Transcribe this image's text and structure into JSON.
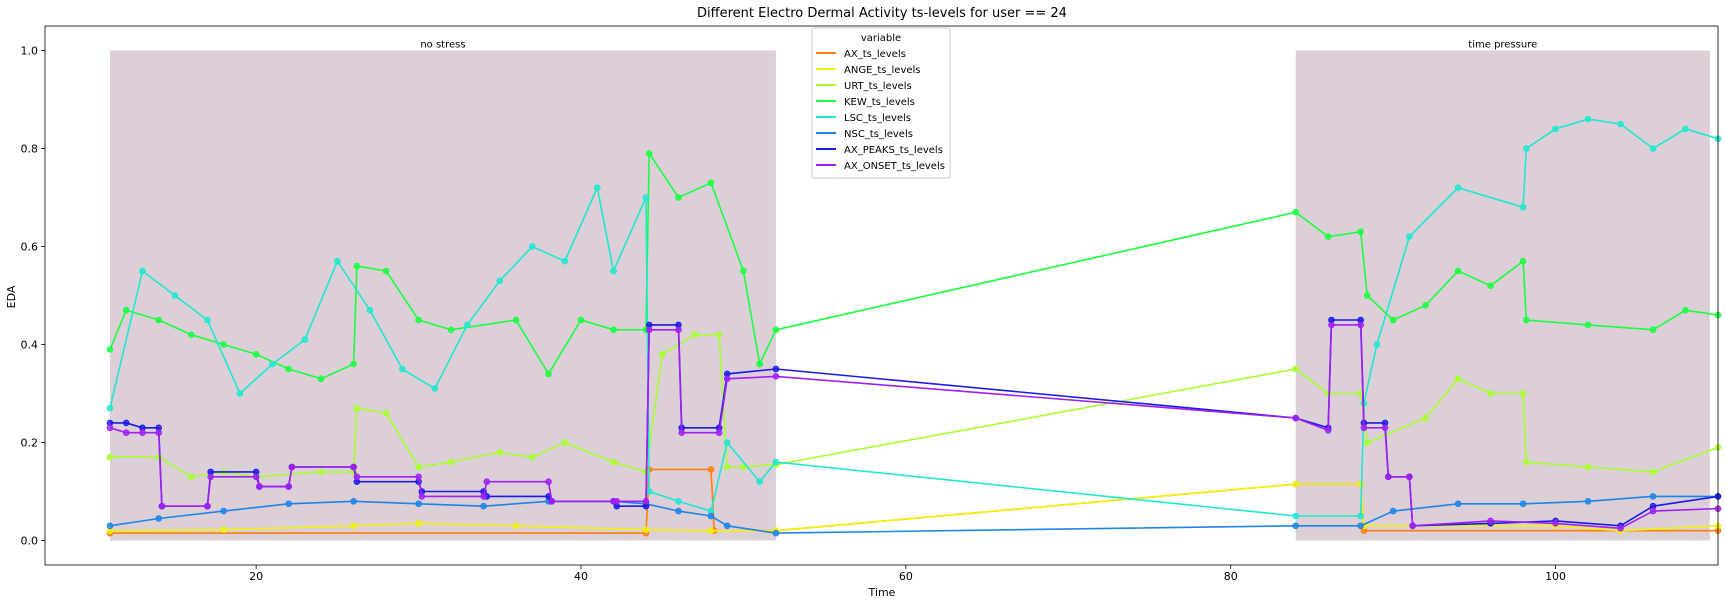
{
  "chart_data": {
    "type": "line",
    "title": "Different Electro Dermal Activity ts-levels for user == 24",
    "xlabel": "Time",
    "ylabel": "EDA",
    "xlim": [
      7,
      110
    ],
    "ylim": [
      -0.05,
      1.05
    ],
    "xticks": [
      20,
      40,
      60,
      80,
      100
    ],
    "yticks": [
      0.0,
      0.2,
      0.4,
      0.6,
      0.8,
      1.0
    ],
    "grid": false,
    "legend": {
      "title": "variable",
      "position": "top-center"
    },
    "regions": [
      {
        "label": "no stress",
        "x0": 11,
        "x1": 52,
        "y0": 0,
        "y1": 1.0,
        "color": "#dccfd8"
      },
      {
        "label": "time pressure",
        "x0": 84,
        "x1": 109.5,
        "y0": 0,
        "y1": 1.0,
        "color": "#dccfd8"
      }
    ],
    "series": [
      {
        "name": "AX_ts_levels",
        "color": "#ff7f0e",
        "points": [
          [
            11,
            0.015
          ],
          [
            44,
            0.015
          ],
          [
            44.2,
            0.145
          ],
          [
            48,
            0.145
          ],
          [
            48.2,
            0.02
          ],
          [
            52,
            0.02
          ],
          [
            84,
            0.115
          ],
          [
            88,
            0.115
          ],
          [
            88.2,
            0.02
          ],
          [
            110,
            0.02
          ]
        ]
      },
      {
        "name": "ANGE_ts_levels",
        "color": "#f2f20a",
        "points": [
          [
            11,
            0.02
          ],
          [
            18,
            0.022
          ],
          [
            26,
            0.03
          ],
          [
            30,
            0.035
          ],
          [
            36,
            0.03
          ],
          [
            44,
            0.022
          ],
          [
            48,
            0.02
          ],
          [
            52,
            0.02
          ],
          [
            84,
            0.115
          ],
          [
            88,
            0.115
          ],
          [
            88.2,
            0.03
          ],
          [
            100,
            0.03
          ],
          [
            104,
            0.02
          ],
          [
            110,
            0.03
          ]
        ]
      },
      {
        "name": "URT_ts_levels",
        "color": "#a6ff2e",
        "points": [
          [
            11,
            0.17
          ],
          [
            14,
            0.17
          ],
          [
            16,
            0.13
          ],
          [
            18,
            0.14
          ],
          [
            20,
            0.13
          ],
          [
            24,
            0.14
          ],
          [
            26,
            0.14
          ],
          [
            26.2,
            0.27
          ],
          [
            28,
            0.26
          ],
          [
            30,
            0.15
          ],
          [
            32,
            0.16
          ],
          [
            35,
            0.18
          ],
          [
            37,
            0.17
          ],
          [
            39,
            0.2
          ],
          [
            42,
            0.16
          ],
          [
            44,
            0.14
          ],
          [
            45,
            0.38
          ],
          [
            47,
            0.42
          ],
          [
            48.5,
            0.42
          ],
          [
            49,
            0.15
          ],
          [
            50,
            0.15
          ],
          [
            52,
            0.155
          ],
          [
            84,
            0.35
          ],
          [
            86,
            0.3
          ],
          [
            88,
            0.3
          ],
          [
            88.4,
            0.2
          ],
          [
            92,
            0.25
          ],
          [
            94,
            0.33
          ],
          [
            96,
            0.3
          ],
          [
            98,
            0.3
          ],
          [
            98.2,
            0.16
          ],
          [
            102,
            0.15
          ],
          [
            106,
            0.14
          ],
          [
            110,
            0.19
          ]
        ]
      },
      {
        "name": "KEW_ts_levels",
        "color": "#19ff3f",
        "points": [
          [
            11,
            0.39
          ],
          [
            12,
            0.47
          ],
          [
            14,
            0.45
          ],
          [
            16,
            0.42
          ],
          [
            18,
            0.4
          ],
          [
            20,
            0.38
          ],
          [
            22,
            0.35
          ],
          [
            24,
            0.33
          ],
          [
            26,
            0.36
          ],
          [
            26.2,
            0.56
          ],
          [
            28,
            0.55
          ],
          [
            30,
            0.45
          ],
          [
            32,
            0.43
          ],
          [
            36,
            0.45
          ],
          [
            38,
            0.34
          ],
          [
            40,
            0.45
          ],
          [
            42,
            0.43
          ],
          [
            44,
            0.43
          ],
          [
            44.2,
            0.79
          ],
          [
            46,
            0.7
          ],
          [
            48,
            0.73
          ],
          [
            50,
            0.55
          ],
          [
            51,
            0.36
          ],
          [
            52,
            0.43
          ],
          [
            84,
            0.67
          ],
          [
            86,
            0.62
          ],
          [
            88,
            0.63
          ],
          [
            88.4,
            0.5
          ],
          [
            90,
            0.45
          ],
          [
            92,
            0.48
          ],
          [
            94,
            0.55
          ],
          [
            96,
            0.52
          ],
          [
            98,
            0.57
          ],
          [
            98.2,
            0.45
          ],
          [
            102,
            0.44
          ],
          [
            106,
            0.43
          ],
          [
            108,
            0.47
          ],
          [
            110,
            0.46
          ]
        ]
      },
      {
        "name": "LSC_ts_levels",
        "color": "#1fe8d0",
        "points": [
          [
            11,
            0.27
          ],
          [
            13,
            0.55
          ],
          [
            15,
            0.5
          ],
          [
            17,
            0.45
          ],
          [
            19,
            0.3
          ],
          [
            21,
            0.36
          ],
          [
            23,
            0.41
          ],
          [
            25,
            0.57
          ],
          [
            27,
            0.47
          ],
          [
            29,
            0.35
          ],
          [
            31,
            0.31
          ],
          [
            33,
            0.44
          ],
          [
            35,
            0.53
          ],
          [
            37,
            0.6
          ],
          [
            39,
            0.57
          ],
          [
            41,
            0.72
          ],
          [
            42,
            0.55
          ],
          [
            44,
            0.7
          ],
          [
            44.2,
            0.1
          ],
          [
            46,
            0.08
          ],
          [
            48,
            0.06
          ],
          [
            49,
            0.2
          ],
          [
            51,
            0.12
          ],
          [
            52,
            0.16
          ],
          [
            84,
            0.05
          ],
          [
            88,
            0.05
          ],
          [
            88.2,
            0.28
          ],
          [
            89,
            0.4
          ],
          [
            91,
            0.62
          ],
          [
            94,
            0.72
          ],
          [
            98,
            0.68
          ],
          [
            98.2,
            0.8
          ],
          [
            100,
            0.84
          ],
          [
            102,
            0.86
          ],
          [
            104,
            0.85
          ],
          [
            106,
            0.8
          ],
          [
            108,
            0.84
          ],
          [
            110,
            0.82
          ]
        ]
      },
      {
        "name": "NSC_ts_levels",
        "color": "#1b85e8",
        "points": [
          [
            11,
            0.03
          ],
          [
            14,
            0.045
          ],
          [
            18,
            0.06
          ],
          [
            22,
            0.075
          ],
          [
            26,
            0.08
          ],
          [
            30,
            0.075
          ],
          [
            34,
            0.07
          ],
          [
            38,
            0.08
          ],
          [
            42,
            0.08
          ],
          [
            44,
            0.075
          ],
          [
            46,
            0.06
          ],
          [
            48,
            0.05
          ],
          [
            49,
            0.03
          ],
          [
            52,
            0.015
          ],
          [
            84,
            0.03
          ],
          [
            88,
            0.03
          ],
          [
            90,
            0.06
          ],
          [
            94,
            0.075
          ],
          [
            98,
            0.075
          ],
          [
            102,
            0.08
          ],
          [
            106,
            0.09
          ],
          [
            110,
            0.09
          ]
        ]
      },
      {
        "name": "AX_PEAKS_ts_levels",
        "color": "#1a1ae6",
        "points": [
          [
            11,
            0.24
          ],
          [
            12,
            0.24
          ],
          [
            13,
            0.23
          ],
          [
            14,
            0.23
          ],
          [
            14.2,
            0.07
          ],
          [
            17,
            0.07
          ],
          [
            17.2,
            0.14
          ],
          [
            20,
            0.14
          ],
          [
            20.2,
            0.11
          ],
          [
            22,
            0.11
          ],
          [
            22.2,
            0.15
          ],
          [
            26,
            0.15
          ],
          [
            26.2,
            0.12
          ],
          [
            30,
            0.12
          ],
          [
            30.2,
            0.1
          ],
          [
            34,
            0.1
          ],
          [
            34.2,
            0.09
          ],
          [
            38,
            0.09
          ],
          [
            38.2,
            0.08
          ],
          [
            42,
            0.08
          ],
          [
            42.2,
            0.07
          ],
          [
            44,
            0.07
          ],
          [
            44.2,
            0.44
          ],
          [
            46,
            0.44
          ],
          [
            46.2,
            0.23
          ],
          [
            48.5,
            0.23
          ],
          [
            49,
            0.34
          ],
          [
            52,
            0.35
          ],
          [
            84,
            0.25
          ],
          [
            86,
            0.23
          ],
          [
            86.2,
            0.45
          ],
          [
            88,
            0.45
          ],
          [
            88.2,
            0.24
          ],
          [
            89.5,
            0.24
          ],
          [
            89.7,
            0.13
          ],
          [
            91,
            0.13
          ],
          [
            91.2,
            0.03
          ],
          [
            96,
            0.035
          ],
          [
            100,
            0.04
          ],
          [
            104,
            0.03
          ],
          [
            106,
            0.07
          ],
          [
            110,
            0.09
          ]
        ]
      },
      {
        "name": "AX_ONSET_ts_levels",
        "color": "#a020f0",
        "points": [
          [
            11,
            0.23
          ],
          [
            12,
            0.22
          ],
          [
            13,
            0.22
          ],
          [
            14,
            0.22
          ],
          [
            14.2,
            0.07
          ],
          [
            17,
            0.07
          ],
          [
            17.2,
            0.13
          ],
          [
            20,
            0.13
          ],
          [
            20.2,
            0.11
          ],
          [
            22,
            0.11
          ],
          [
            22.2,
            0.15
          ],
          [
            26,
            0.15
          ],
          [
            26.2,
            0.13
          ],
          [
            30,
            0.13
          ],
          [
            30.2,
            0.09
          ],
          [
            34,
            0.09
          ],
          [
            34.2,
            0.12
          ],
          [
            38,
            0.12
          ],
          [
            38.2,
            0.08
          ],
          [
            42,
            0.08
          ],
          [
            42.2,
            0.08
          ],
          [
            44,
            0.08
          ],
          [
            44.2,
            0.43
          ],
          [
            46,
            0.43
          ],
          [
            46.2,
            0.22
          ],
          [
            48.5,
            0.22
          ],
          [
            49,
            0.33
          ],
          [
            52,
            0.335
          ],
          [
            84,
            0.25
          ],
          [
            86,
            0.225
          ],
          [
            86.2,
            0.44
          ],
          [
            88,
            0.44
          ],
          [
            88.2,
            0.23
          ],
          [
            89.5,
            0.23
          ],
          [
            89.7,
            0.13
          ],
          [
            91,
            0.13
          ],
          [
            91.2,
            0.03
          ],
          [
            96,
            0.04
          ],
          [
            100,
            0.035
          ],
          [
            104,
            0.025
          ],
          [
            106,
            0.06
          ],
          [
            110,
            0.065
          ]
        ]
      }
    ]
  }
}
